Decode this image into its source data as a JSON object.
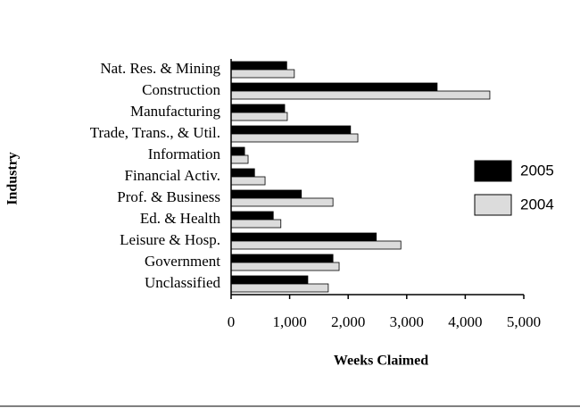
{
  "chart_data": {
    "type": "barh",
    "categories": [
      "Nat. Res. & Mining",
      "Construction",
      "Manufacturing",
      "Trade, Trans., & Util.",
      "Information",
      "Financial Activ.",
      "Prof. & Business",
      "Ed. & Health",
      "Leisure & Hosp.",
      "Government",
      "Unclassified"
    ],
    "series": [
      {
        "name": "2005",
        "color": "#000000",
        "values": [
          950,
          3520,
          915,
          2040,
          230,
          400,
          1200,
          720,
          2480,
          1740,
          1310
        ]
      },
      {
        "name": "2004",
        "color": "#dcdcdc",
        "values": [
          1080,
          4420,
          960,
          2165,
          290,
          580,
          1740,
          850,
          2900,
          1845,
          1660
        ]
      }
    ],
    "xlim": [
      0,
      5000
    ],
    "xticks": [
      0,
      {
        "value": 1000,
        "label": "1,000"
      },
      {
        "value": 2000,
        "label": "2,000"
      },
      {
        "value": 3000,
        "label": "3,000"
      },
      {
        "value": 4000,
        "label": "4,000"
      },
      {
        "value": 5000,
        "label": "5,000"
      }
    ],
    "x_label": "Weeks Claimed",
    "y_label": "Industry",
    "legend": "right"
  }
}
